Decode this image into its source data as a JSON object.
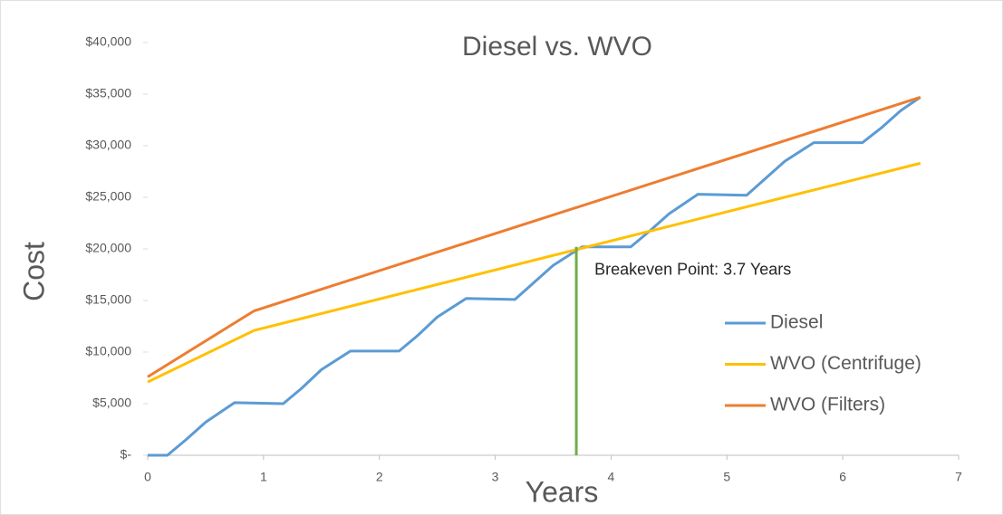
{
  "chart_data": {
    "type": "line",
    "title": "Diesel vs. WVO",
    "xlabel": "Years",
    "ylabel": "Cost",
    "xlim": [
      0,
      7
    ],
    "xticks": [
      0,
      1,
      2,
      3,
      4,
      5,
      6,
      7
    ],
    "ylim": [
      0,
      40000
    ],
    "yticks": [
      {
        "value": 0,
        "label": "$-"
      },
      {
        "value": 5000,
        "label": "$5,000"
      },
      {
        "value": 10000,
        "label": "$10,000"
      },
      {
        "value": 15000,
        "label": "$15,000"
      },
      {
        "value": 20000,
        "label": "$20,000"
      },
      {
        "value": 25000,
        "label": "$25,000"
      },
      {
        "value": 30000,
        "label": "$30,000"
      },
      {
        "value": 35000,
        "label": "$35,000"
      },
      {
        "value": 40000,
        "label": "$40,000"
      }
    ],
    "grid": false,
    "legend": "right",
    "series": [
      {
        "name": "Diesel",
        "color": "#5b9bd5",
        "x": [
          0,
          0.17,
          0.33,
          0.5,
          0.75,
          1.17,
          1.33,
          1.5,
          1.75,
          2.17,
          2.33,
          2.5,
          2.75,
          3.17,
          3.33,
          3.5,
          3.75,
          4.17,
          4.33,
          4.5,
          4.75,
          5.17,
          5.33,
          5.5,
          5.75,
          6.17,
          6.33,
          6.5,
          6.67
        ],
        "values": [
          0,
          0,
          1500,
          3200,
          5100,
          5000,
          6500,
          8300,
          10100,
          10100,
          11600,
          13400,
          15200,
          15100,
          16700,
          18400,
          20200,
          20200,
          21700,
          23400,
          25300,
          25200,
          26800,
          28500,
          30300,
          30300,
          31700,
          33400,
          34700
        ]
      },
      {
        "name": "WVO (Centrifuge)",
        "color": "#ffc000",
        "x": [
          0,
          0.92,
          6.67
        ],
        "values": [
          7100,
          12100,
          28300
        ]
      },
      {
        "name": "WVO (Filters)",
        "color": "#ed7d31",
        "x": [
          0,
          0.92,
          6.67
        ],
        "values": [
          7600,
          14000,
          34700
        ]
      }
    ],
    "annotation": {
      "text": "Breakeven Point: 3.7 Years",
      "x": 3.7,
      "y": 20200,
      "color": "#70ad47"
    }
  }
}
